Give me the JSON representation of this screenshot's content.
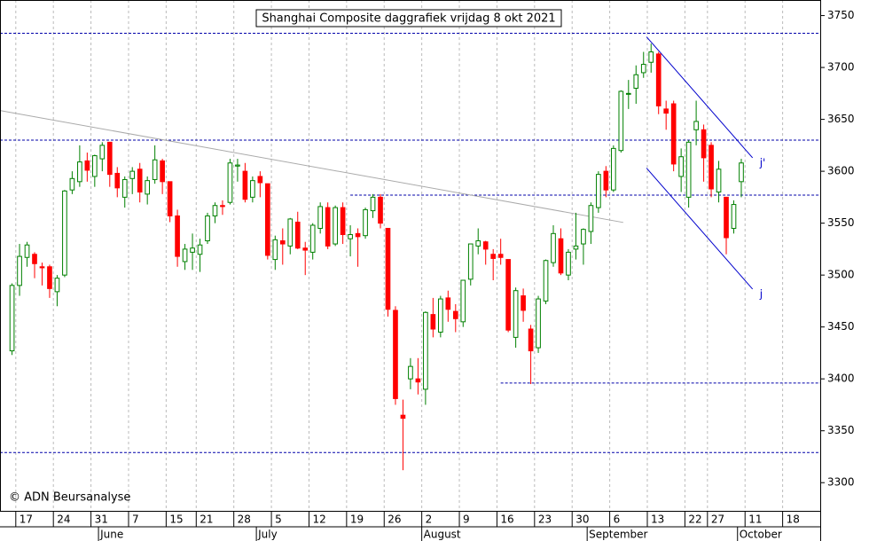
{
  "chart_data": {
    "type": "candlestick",
    "title": "Shanghai Composite daggrafiek vrijdag 8 okt 2021",
    "copyright": "© ADN Beursanalyse",
    "open": [
      3427,
      3490,
      3517,
      3520,
      3508,
      3508,
      3484,
      3500,
      3582,
      3590,
      3610,
      3595,
      3612,
      3628,
      3598,
      3575,
      3593,
      3602,
      3578,
      3592,
      3610,
      3590,
      3557,
      3513,
      3522,
      3520,
      3533,
      3557,
      3567,
      3570,
      3605,
      3600,
      3575,
      3595,
      3588,
      3515,
      3533,
      3528,
      3551,
      3526,
      3522,
      3545,
      3565,
      3530,
      3565,
      3535,
      3540,
      3538,
      3562,
      3575,
      3545,
      3466,
      3365,
      3400,
      3400,
      3390,
      3462,
      3445,
      3478,
      3465,
      3455,
      3496,
      3528,
      3532,
      3520,
      3520,
      3515,
      3440,
      3480,
      3448,
      3430,
      3475,
      3512,
      3535,
      3500,
      3525,
      3530,
      3542,
      3565,
      3600,
      3582,
      3620,
      3675,
      3680,
      3695,
      3705,
      3713,
      3660,
      3665,
      3595,
      3575,
      3640,
      3640,
      3625,
      3580,
      3575,
      3545,
      3590
    ],
    "high": [
      3492,
      3530,
      3532,
      3522,
      3512,
      3510,
      3500,
      3582,
      3600,
      3625,
      3618,
      3616,
      3628,
      3628,
      3604,
      3595,
      3604,
      3608,
      3595,
      3625,
      3612,
      3590,
      3563,
      3530,
      3540,
      3535,
      3560,
      3570,
      3572,
      3612,
      3612,
      3608,
      3595,
      3600,
      3588,
      3538,
      3545,
      3555,
      3561,
      3532,
      3550,
      3570,
      3570,
      3567,
      3570,
      3548,
      3545,
      3565,
      3578,
      3578,
      3545,
      3470,
      3380,
      3420,
      3420,
      3465,
      3478,
      3480,
      3485,
      3472,
      3495,
      3530,
      3545,
      3533,
      3525,
      3535,
      3515,
      3488,
      3487,
      3452,
      3480,
      3515,
      3548,
      3545,
      3525,
      3560,
      3545,
      3570,
      3600,
      3605,
      3625,
      3678,
      3688,
      3702,
      3715,
      3723,
      3715,
      3668,
      3668,
      3622,
      3630,
      3668,
      3645,
      3628,
      3610,
      3575,
      3572,
      3612
    ],
    "low": [
      3423,
      3480,
      3508,
      3497,
      3490,
      3478,
      3470,
      3498,
      3578,
      3585,
      3590,
      3585,
      3600,
      3585,
      3575,
      3565,
      3578,
      3570,
      3568,
      3588,
      3578,
      3551,
      3508,
      3505,
      3505,
      3503,
      3530,
      3550,
      3558,
      3568,
      3590,
      3570,
      3570,
      3575,
      3515,
      3505,
      3510,
      3520,
      3525,
      3500,
      3515,
      3540,
      3525,
      3528,
      3530,
      3518,
      3508,
      3535,
      3555,
      3545,
      3460,
      3375,
      3312,
      3390,
      3385,
      3375,
      3440,
      3440,
      3455,
      3445,
      3450,
      3490,
      3520,
      3510,
      3495,
      3510,
      3445,
      3430,
      3455,
      3395,
      3425,
      3472,
      3508,
      3500,
      3495,
      3515,
      3510,
      3530,
      3560,
      3575,
      3580,
      3618,
      3660,
      3665,
      3690,
      3695,
      3655,
      3640,
      3600,
      3580,
      3565,
      3625,
      3590,
      3575,
      3570,
      3520,
      3540,
      3575
    ],
    "close": [
      3490,
      3518,
      3529,
      3511,
      3507,
      3487,
      3497,
      3581,
      3593,
      3609,
      3601,
      3615,
      3625,
      3597,
      3584,
      3592,
      3600,
      3580,
      3591,
      3611,
      3590,
      3557,
      3518,
      3525,
      3526,
      3529,
      3557,
      3567,
      3566,
      3608,
      3606,
      3573,
      3591,
      3589,
      3519,
      3534,
      3530,
      3554,
      3526,
      3524,
      3548,
      3566,
      3528,
      3565,
      3539,
      3539,
      3537,
      3563,
      3575,
      3550,
      3467,
      3381,
      3362,
      3412,
      3397,
      3464,
      3448,
      3477,
      3467,
      3458,
      3495,
      3530,
      3533,
      3525,
      3516,
      3517,
      3447,
      3485,
      3466,
      3427,
      3477,
      3514,
      3540,
      3502,
      3522,
      3528,
      3544,
      3567,
      3597,
      3582,
      3622,
      3677,
      3675,
      3693,
      3703,
      3715,
      3663,
      3656,
      3607,
      3614,
      3628,
      3648,
      3613,
      3583,
      3602,
      3536,
      3568,
      3608
    ],
    "up_color": "#008000",
    "down_color": "#ff0000",
    "xlim": [
      -1.6,
      107.5
    ],
    "ylim": [
      3272,
      3765
    ],
    "yticks": [
      3300,
      3350,
      3400,
      3450,
      3500,
      3550,
      3600,
      3650,
      3700,
      3750
    ],
    "xticks": [
      {
        "value": 1,
        "label": "17"
      },
      {
        "value": 6,
        "label": "24"
      },
      {
        "value": 11,
        "label": "31"
      },
      {
        "value": 16,
        "label": "7"
      },
      {
        "value": 21,
        "label": "15"
      },
      {
        "value": 25,
        "label": "21"
      },
      {
        "value": 30,
        "label": "28"
      },
      {
        "value": 35,
        "label": "5"
      },
      {
        "value": 40,
        "label": "12"
      },
      {
        "value": 45,
        "label": "19"
      },
      {
        "value": 50,
        "label": "26"
      },
      {
        "value": 55,
        "label": "2"
      },
      {
        "value": 60,
        "label": "9"
      },
      {
        "value": 65,
        "label": "16"
      },
      {
        "value": 70,
        "label": "23"
      },
      {
        "value": 75,
        "label": "30"
      },
      {
        "value": 80,
        "label": "6"
      },
      {
        "value": 85,
        "label": "13"
      },
      {
        "value": 90,
        "label": "22"
      },
      {
        "value": 93,
        "label": "27"
      },
      {
        "value": 98,
        "label": "11"
      },
      {
        "value": 103,
        "label": "18"
      }
    ],
    "month_labels": [
      {
        "value": 12,
        "label": "June"
      },
      {
        "value": 33,
        "label": "July"
      },
      {
        "value": 55,
        "label": "August"
      },
      {
        "value": 77,
        "label": "September"
      },
      {
        "value": 97,
        "label": "October"
      }
    ],
    "levels": [
      {
        "value": 3733,
        "from": -1.6
      },
      {
        "value": 3630,
        "from": -1.6
      },
      {
        "value": 3577,
        "from": 45
      },
      {
        "value": 3396,
        "from": 65
      },
      {
        "value": 3329,
        "from": -1.6
      }
    ],
    "level_color": "#0000aa",
    "trendlines": [
      {
        "x": [
          -1.6,
          81.3
        ],
        "y": [
          3658.5,
          3550.7
        ],
        "color": "#aaaaaa"
      },
      {
        "x": [
          84.4,
          98.5
        ],
        "y": [
          3729.5,
          3613
        ],
        "color": "#0000cc",
        "label": "j'"
      },
      {
        "x": [
          84.4,
          98.5
        ],
        "y": [
          3603,
          3486.5
        ],
        "color": "#0000cc",
        "label": "j"
      }
    ]
  }
}
